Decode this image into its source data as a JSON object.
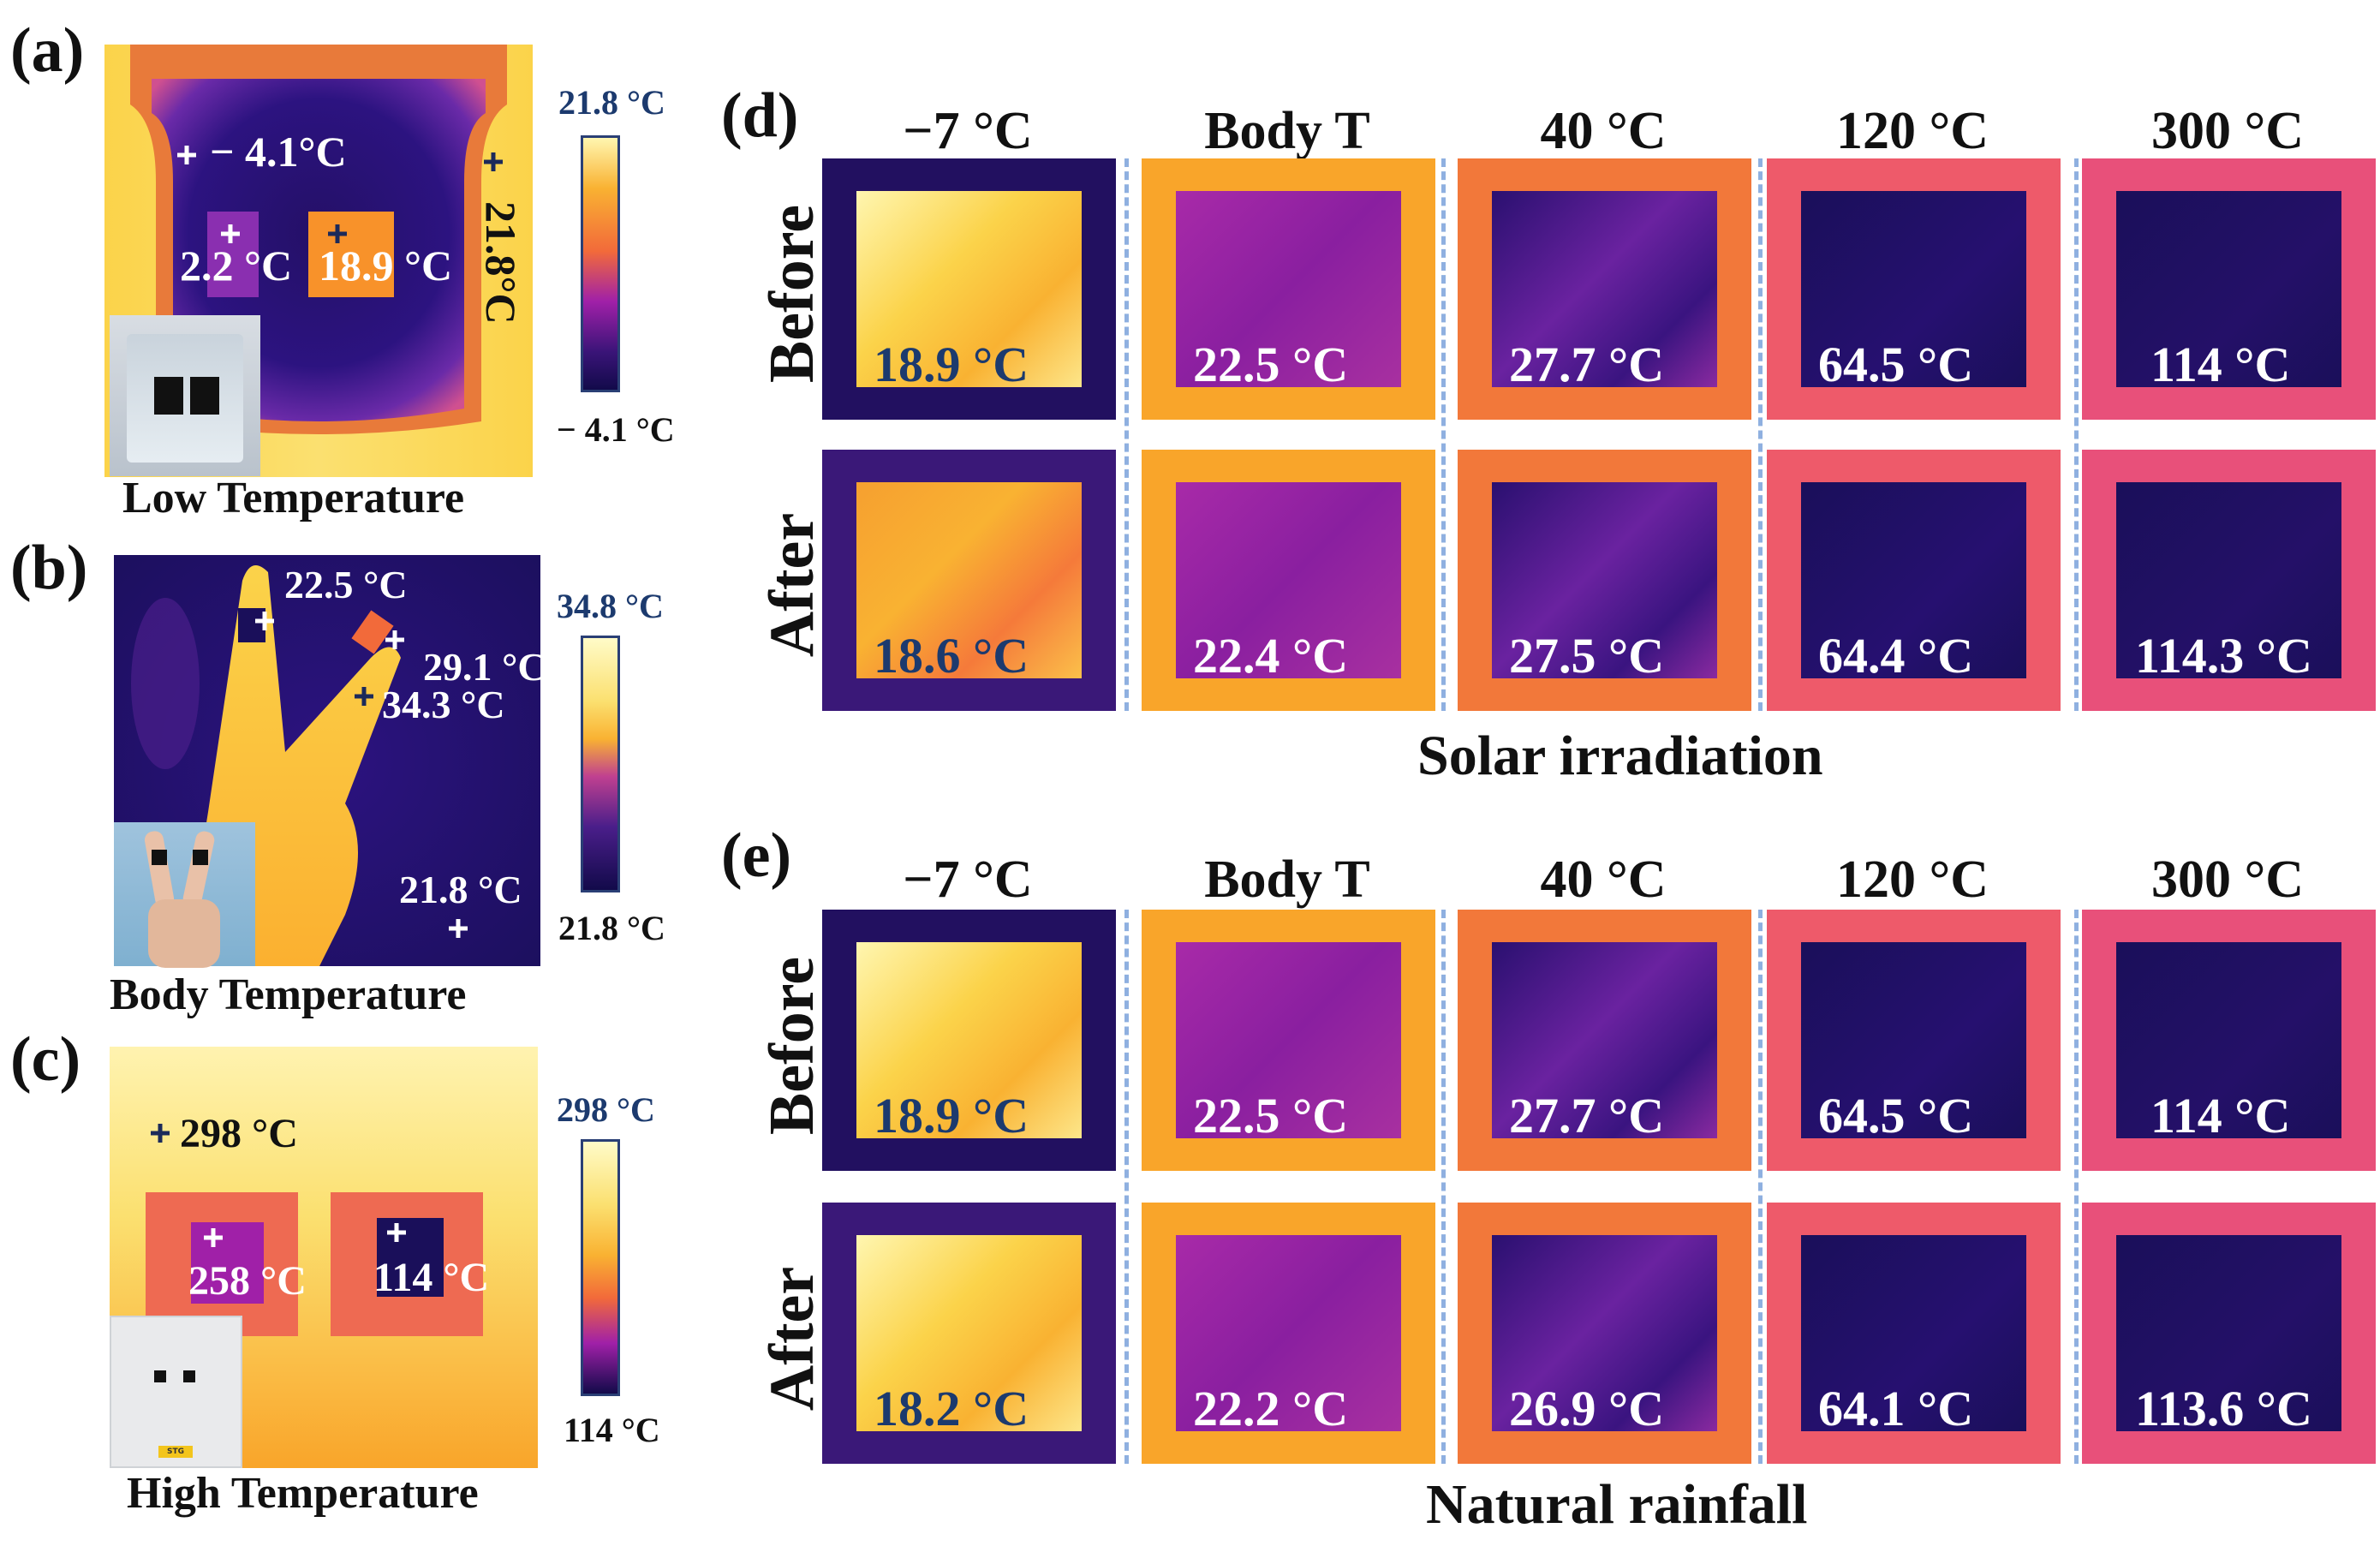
{
  "panels": {
    "a": {
      "label": "(a)",
      "caption": "Low Temperature",
      "points": [
        "− 4.1°C",
        "2.2 °C",
        "18.9 °C",
        "21.8°C"
      ],
      "colorbar": {
        "max": "21.8 °C",
        "min": "− 4.1 °C"
      }
    },
    "b": {
      "label": "(b)",
      "caption": "Body Temperature",
      "points": [
        "22.5 °C",
        "29.1 °C",
        "34.3 °C",
        "21.8 °C"
      ],
      "colorbar": {
        "max": "34.8 °C",
        "min": "21.8 °C"
      }
    },
    "c": {
      "label": "(c)",
      "caption": "High Temperature",
      "points": [
        "298 °C",
        "258 °C",
        "114 °C"
      ],
      "colorbar": {
        "max": "298 °C",
        "min": "114 °C"
      },
      "sticker_text": "STG"
    },
    "d": {
      "label": "(d)",
      "columns": [
        "−7 °C",
        "Body  T",
        "40 °C",
        "120 °C",
        "300 °C"
      ],
      "rows": [
        "Before",
        "After"
      ],
      "before": [
        "18.9 °C",
        "22.5 °C",
        "27.7 °C",
        "64.5 °C",
        "114 °C"
      ],
      "after": [
        "18.6 °C",
        "22.4 °C",
        "27.5 °C",
        "64.4 °C",
        "114.3 °C"
      ],
      "title": "Solar irradiation"
    },
    "e": {
      "label": "(e)",
      "columns": [
        "−7 °C",
        "Body  T",
        "40 °C",
        "120 °C",
        "300 °C"
      ],
      "rows": [
        "Before",
        "After"
      ],
      "before": [
        "18.9 °C",
        "22.5 °C",
        "27.7 °C",
        "64.5 °C",
        "114 °C"
      ],
      "after": [
        "18.2 °C",
        "22.2 °C",
        "26.9 °C",
        "64.1 °C",
        "113.6 °C"
      ],
      "title": "Natural rainfall"
    }
  },
  "colors": {
    "cold": "#1a0f5a",
    "mid": "#a020a8",
    "warm": "#f26a3a",
    "hot": "#f9b232",
    "hottest": "#fff7a8",
    "label_blue": "#1c3a6e",
    "divider": "#8fb0e0"
  },
  "icons": [
    "crosshair-icon"
  ]
}
